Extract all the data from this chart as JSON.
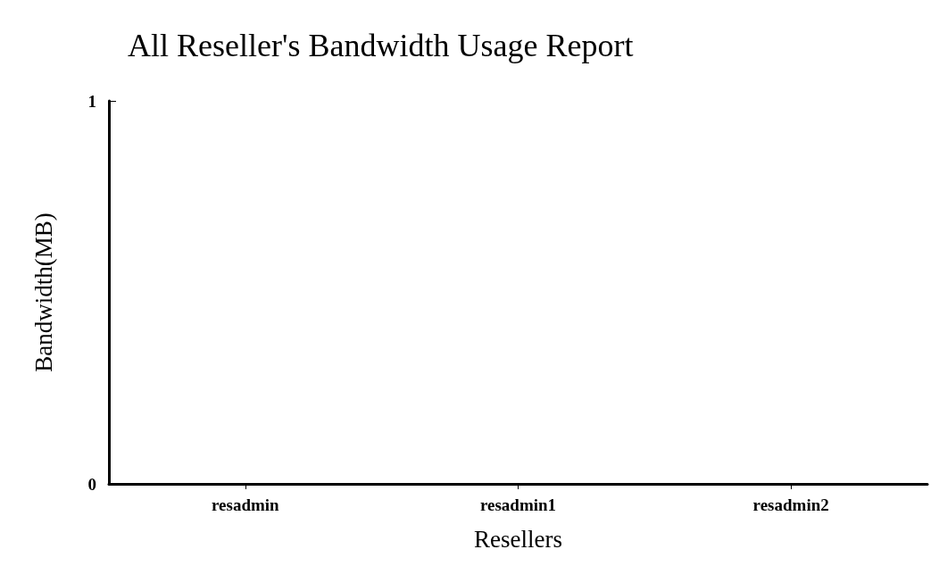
{
  "chart_data": {
    "type": "bar",
    "title": "All Reseller's Bandwidth Usage Report",
    "xlabel": "Resellers",
    "ylabel": "Bandwidth(MB)",
    "categories": [
      "resadmin",
      "resadmin1",
      "resadmin2"
    ],
    "values": [
      0,
      0,
      0
    ],
    "ylim": [
      0,
      1
    ],
    "yticks": [
      0,
      1
    ],
    "grid": false
  }
}
